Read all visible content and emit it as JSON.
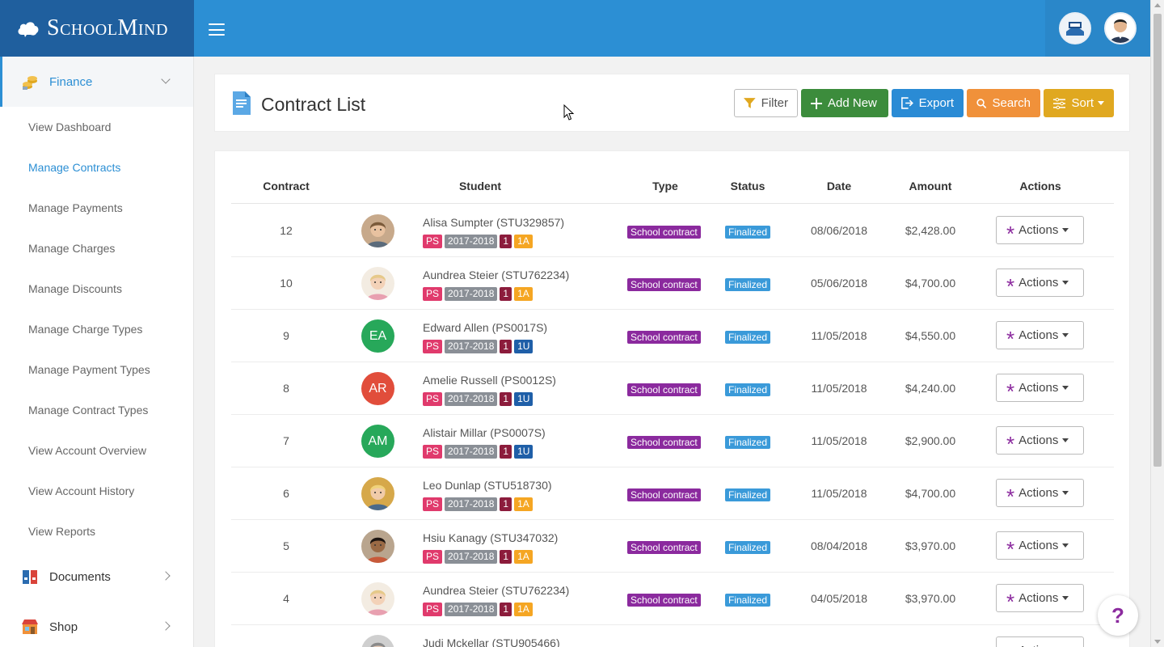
{
  "brand": {
    "name": "SchoolMind"
  },
  "colors": {
    "topbar": "#2c8fd4",
    "brand_bg": "#1f5f9e",
    "accent": "#2c8fd4",
    "purple": "#8b2a9e"
  },
  "sidebar": {
    "sections": [
      {
        "label": "Finance",
        "icon": "coins-icon",
        "expanded": true
      },
      {
        "label": "Documents",
        "icon": "binders-icon",
        "expanded": false
      },
      {
        "label": "Shop",
        "icon": "shop-icon",
        "expanded": false
      }
    ],
    "items": [
      {
        "label": "View Dashboard"
      },
      {
        "label": "Manage Contracts",
        "active": true
      },
      {
        "label": "Manage Payments"
      },
      {
        "label": "Manage Charges"
      },
      {
        "label": "Manage Discounts"
      },
      {
        "label": "Manage Charge Types"
      },
      {
        "label": "Manage Payment Types"
      },
      {
        "label": "Manage Contract Types"
      },
      {
        "label": "View Account Overview"
      },
      {
        "label": "View Account History"
      },
      {
        "label": "View Reports"
      }
    ]
  },
  "header": {
    "title": "Contract List",
    "buttons": {
      "filter": "Filter",
      "add": "Add New",
      "export": "Export",
      "search": "Search",
      "sort": "Sort"
    }
  },
  "table": {
    "columns": [
      "Contract",
      "Student",
      "Type",
      "Status",
      "Date",
      "Amount",
      "Actions"
    ],
    "action_label": "Actions",
    "rows": [
      {
        "contract": "12",
        "student": "Alisa Sumpter (STU329857)",
        "avatar": "photo",
        "photo": "boy-curly",
        "tags": [
          "PS",
          "2017-2018",
          "1",
          "1A"
        ],
        "type": "School contract",
        "status": "Finalized",
        "date": "08/06/2018",
        "amount": "$2,428.00"
      },
      {
        "contract": "10",
        "student": "Aundrea Steier (STU762234)",
        "avatar": "photo",
        "photo": "girl-blonde",
        "tags": [
          "PS",
          "2017-2018",
          "1",
          "1A"
        ],
        "type": "School contract",
        "status": "Finalized",
        "date": "05/06/2018",
        "amount": "$4,700.00"
      },
      {
        "contract": "9",
        "student": "Edward Allen (PS0017S)",
        "avatar": "initials",
        "initials": "EA",
        "avatar_color": "#27a85a",
        "tags": [
          "PS",
          "2017-2018",
          "1",
          "1U"
        ],
        "type": "School contract",
        "status": "Finalized",
        "date": "11/05/2018",
        "amount": "$4,550.00"
      },
      {
        "contract": "8",
        "student": "Amelie Russell (PS0012S)",
        "avatar": "initials",
        "initials": "AR",
        "avatar_color": "#e14d3b",
        "tags": [
          "PS",
          "2017-2018",
          "1",
          "1U"
        ],
        "type": "School contract",
        "status": "Finalized",
        "date": "11/05/2018",
        "amount": "$4,240.00"
      },
      {
        "contract": "7",
        "student": "Alistair Millar (PS0007S)",
        "avatar": "initials",
        "initials": "AM",
        "avatar_color": "#27a85a",
        "tags": [
          "PS",
          "2017-2018",
          "1",
          "1U"
        ],
        "type": "School contract",
        "status": "Finalized",
        "date": "11/05/2018",
        "amount": "$2,900.00"
      },
      {
        "contract": "6",
        "student": "Leo Dunlap (STU518730)",
        "avatar": "photo",
        "photo": "boy-blonde",
        "tags": [
          "PS",
          "2017-2018",
          "1",
          "1A"
        ],
        "type": "School contract",
        "status": "Finalized",
        "date": "11/05/2018",
        "amount": "$4,700.00"
      },
      {
        "contract": "5",
        "student": "Hsiu Kanagy (STU347032)",
        "avatar": "photo",
        "photo": "boy-dark",
        "tags": [
          "PS",
          "2017-2018",
          "1",
          "1A"
        ],
        "type": "School contract",
        "status": "Finalized",
        "date": "08/04/2018",
        "amount": "$3,970.00"
      },
      {
        "contract": "4",
        "student": "Aundrea Steier (STU762234)",
        "avatar": "photo",
        "photo": "girl-blonde",
        "tags": [
          "PS",
          "2017-2018",
          "1",
          "1A"
        ],
        "type": "School contract",
        "status": "Finalized",
        "date": "04/05/2018",
        "amount": "$3,970.00"
      },
      {
        "contract": "",
        "student": "Judi Mckellar (STU905466)",
        "avatar": "photo",
        "photo": "girl-grey",
        "tags": [],
        "type": "",
        "status": "",
        "date": "",
        "amount": ""
      }
    ]
  },
  "help": {
    "label": "?"
  }
}
